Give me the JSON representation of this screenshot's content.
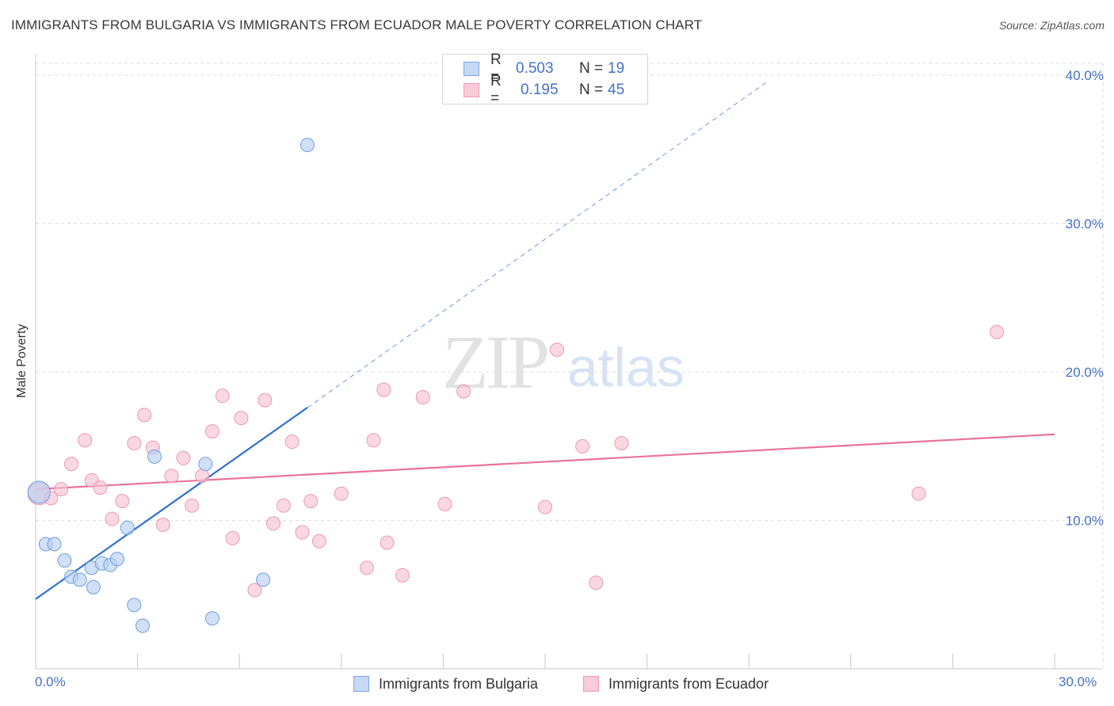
{
  "title": "IMMIGRANTS FROM BULGARIA VS IMMIGRANTS FROM ECUADOR MALE POVERTY CORRELATION CHART",
  "source": "Source: ZipAtlas.com",
  "watermark": {
    "zip": "ZIP",
    "atlas": "atlas"
  },
  "legend": {
    "rows": [
      {
        "r_label": "R =",
        "r_value": "0.503",
        "n_label": "N =",
        "n_value": "19",
        "fill": "#c5d9f5",
        "stroke": "#7aa6e0"
      },
      {
        "r_label": "R =",
        "r_value": "0.195",
        "n_label": "N =",
        "n_value": "45",
        "fill": "#f9cad7",
        "stroke": "#ef9ab5"
      }
    ]
  },
  "bottom_legend": [
    {
      "label": "Immigrants from Bulgaria",
      "fill": "#c5d9f5",
      "stroke": "#7aa6e0"
    },
    {
      "label": "Immigrants from Ecuador",
      "fill": "#f9cad7",
      "stroke": "#ef9ab5"
    }
  ],
  "colors": {
    "blue_point_fill": "#b8d0f2",
    "blue_point_stroke": "#6f9fdc",
    "blue_line": "#2b6fcf",
    "pink_point_fill": "#f8c3d2",
    "pink_point_stroke": "#ec98b2",
    "pink_line": "#e8739a",
    "grid": "#dcdcdc",
    "tick_label": "#4472c4"
  },
  "chart_data": {
    "type": "scatter",
    "title": "IMMIGRANTS FROM BULGARIA VS IMMIGRANTS FROM ECUADOR MALE POVERTY CORRELATION CHART",
    "xlabel": "",
    "ylabel": "Male Poverty",
    "xlim": [
      0,
      30
    ],
    "ylim": [
      0,
      40
    ],
    "x_tick_labels": [
      {
        "value": 0,
        "label": "0.0%"
      },
      {
        "value": 30,
        "label": "30.0%"
      }
    ],
    "x_minor_ticks": [
      0,
      3,
      6,
      9,
      12,
      15,
      18,
      21,
      24,
      27,
      30
    ],
    "y_ticks": [
      {
        "value": 10,
        "label": "10.0%"
      },
      {
        "value": 20,
        "label": "20.0%"
      },
      {
        "value": 30,
        "label": "30.0%"
      },
      {
        "value": 40,
        "label": "40.0%"
      }
    ],
    "series": [
      {
        "name": "Immigrants from Bulgaria",
        "color": "blue",
        "points": [
          [
            0.1,
            11.9
          ],
          [
            0.3,
            8.4
          ],
          [
            0.55,
            8.4
          ],
          [
            0.85,
            7.3
          ],
          [
            1.05,
            6.2
          ],
          [
            1.3,
            6.0
          ],
          [
            1.65,
            6.8
          ],
          [
            1.7,
            5.5
          ],
          [
            1.95,
            7.1
          ],
          [
            2.2,
            7.0
          ],
          [
            2.4,
            7.4
          ],
          [
            2.7,
            9.5
          ],
          [
            2.9,
            4.3
          ],
          [
            3.15,
            2.9
          ],
          [
            3.5,
            14.3
          ],
          [
            5.0,
            13.8
          ],
          [
            5.2,
            3.4
          ],
          [
            6.7,
            6.0
          ],
          [
            8.0,
            35.3
          ]
        ],
        "trend": {
          "x_start": 0,
          "y_start": 4.7,
          "x_solid_end": 8.0,
          "y_solid_end": 17.6,
          "x_dash_end": 21.5,
          "y_dash_end": 39.5
        }
      },
      {
        "name": "Immigrants from Ecuador",
        "color": "pink",
        "points": [
          [
            0.1,
            11.8
          ],
          [
            0.45,
            11.5
          ],
          [
            0.75,
            12.1
          ],
          [
            1.05,
            13.8
          ],
          [
            1.45,
            15.4
          ],
          [
            1.65,
            12.7
          ],
          [
            1.9,
            12.2
          ],
          [
            2.25,
            10.1
          ],
          [
            2.55,
            11.3
          ],
          [
            2.9,
            15.2
          ],
          [
            3.2,
            17.1
          ],
          [
            3.45,
            14.9
          ],
          [
            3.75,
            9.7
          ],
          [
            4.0,
            13.0
          ],
          [
            4.35,
            14.2
          ],
          [
            4.6,
            11.0
          ],
          [
            4.9,
            13.0
          ],
          [
            5.2,
            16.0
          ],
          [
            5.5,
            18.4
          ],
          [
            5.8,
            8.8
          ],
          [
            6.05,
            16.9
          ],
          [
            6.45,
            5.3
          ],
          [
            6.75,
            18.1
          ],
          [
            7.0,
            9.8
          ],
          [
            7.3,
            11.0
          ],
          [
            7.55,
            15.3
          ],
          [
            7.85,
            9.2
          ],
          [
            8.1,
            11.3
          ],
          [
            8.35,
            8.6
          ],
          [
            9.0,
            11.8
          ],
          [
            9.75,
            6.8
          ],
          [
            9.95,
            15.4
          ],
          [
            10.25,
            18.8
          ],
          [
            10.35,
            8.5
          ],
          [
            10.8,
            6.3
          ],
          [
            11.4,
            18.3
          ],
          [
            12.05,
            11.1
          ],
          [
            12.6,
            18.7
          ],
          [
            15.0,
            10.9
          ],
          [
            15.35,
            21.5
          ],
          [
            16.1,
            15.0
          ],
          [
            16.5,
            5.8
          ],
          [
            17.25,
            15.2
          ],
          [
            26.0,
            11.8
          ],
          [
            28.3,
            22.7
          ]
        ],
        "trend": {
          "x_start": 0,
          "y_start": 12.1,
          "x_end": 30,
          "y_end": 15.8
        }
      }
    ]
  }
}
